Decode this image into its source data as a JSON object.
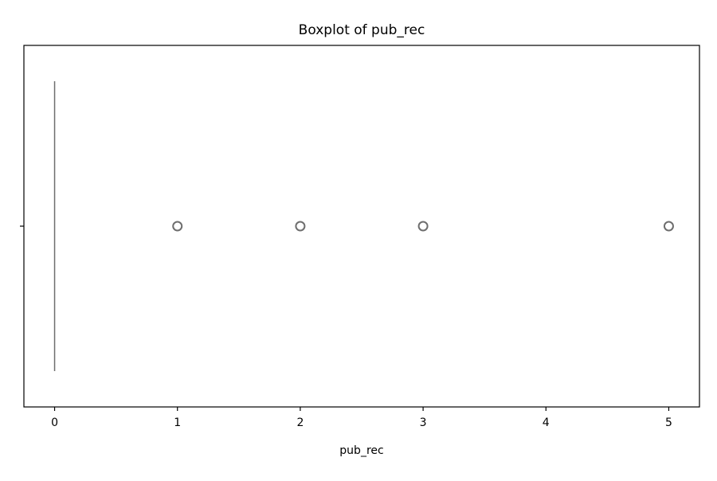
{
  "chart_data": {
    "type": "boxplot",
    "title": "Boxplot of pub_rec",
    "xlabel": "pub_rec",
    "ylabel": "",
    "orientation": "horizontal",
    "xlim": [
      -0.25,
      5.25
    ],
    "xticks": [
      0,
      1,
      2,
      3,
      4,
      5
    ],
    "xtick_labels": [
      "0",
      "1",
      "2",
      "3",
      "4",
      "5"
    ],
    "grid": false,
    "box": {
      "min": 0,
      "q1": 0,
      "median": 0,
      "q3": 0,
      "max": 0
    },
    "outliers": [
      1,
      2,
      3,
      5
    ],
    "colors": {
      "box_line": "#6e6e6e",
      "outlier_edge": "#6e6e6e",
      "axes": "#000000"
    }
  }
}
